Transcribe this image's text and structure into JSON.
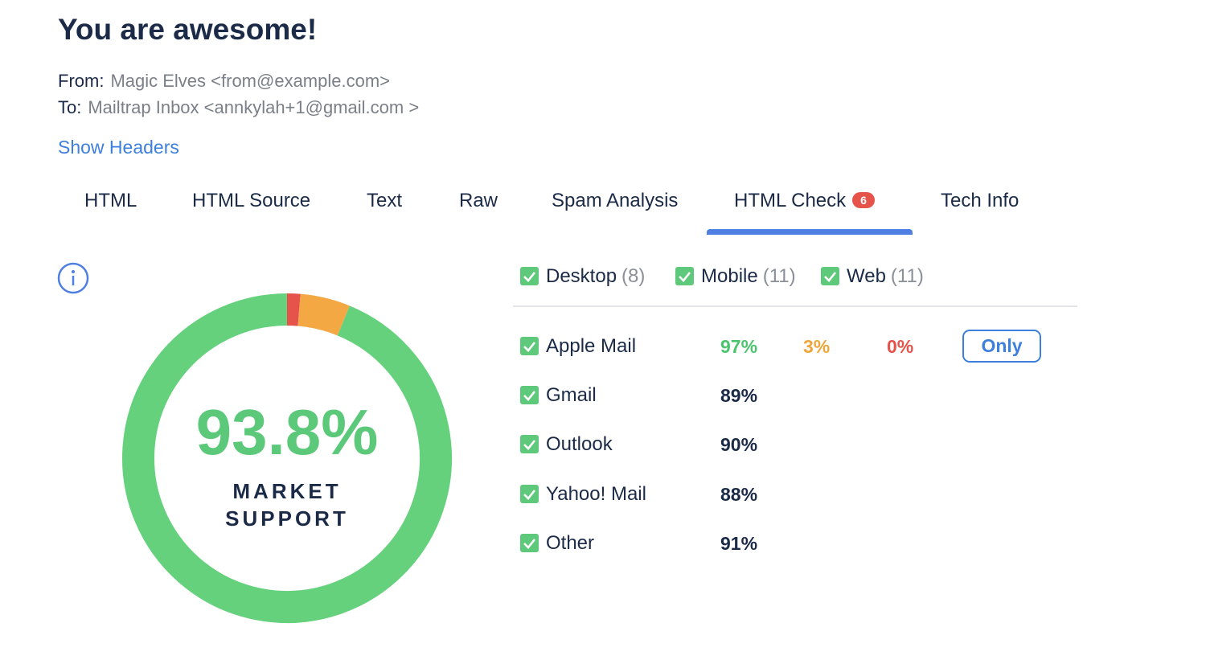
{
  "header": {
    "title": "You are awesome!",
    "from_label": "From:",
    "from": "Magic Elves <from@example.com>",
    "to_label": "To:",
    "to": "Mailtrap Inbox <annkylah+1@gmail.com >",
    "show_headers": "Show Headers"
  },
  "tabs": {
    "active": 5,
    "items": [
      {
        "label": "HTML"
      },
      {
        "label": "HTML Source"
      },
      {
        "label": "Text"
      },
      {
        "label": "Raw"
      },
      {
        "label": "Spam Analysis"
      },
      {
        "label": "HTML Check",
        "badge": "6"
      },
      {
        "label": "Tech Info"
      }
    ]
  },
  "donut": {
    "value_label": "93.8%",
    "caption": [
      "MARKET",
      "SUPPORT"
    ],
    "segments": [
      {
        "value": 1.3,
        "color": "#e5534b"
      },
      {
        "value": 4.9,
        "color": "#f4a843"
      },
      {
        "value": 93.8,
        "color": "#66d17d"
      }
    ]
  },
  "filters": [
    {
      "label": "Desktop",
      "count": "(8)"
    },
    {
      "label": "Mobile",
      "count": "(11)"
    },
    {
      "label": "Web",
      "count": "(11)"
    }
  ],
  "clients": {
    "status_colors": [
      "#4cc46e",
      "#f0a53a",
      "#e5534b"
    ],
    "only_button": "Only",
    "rows": [
      {
        "name": "Apple Mail",
        "values": [
          "97%",
          "3%",
          "0%"
        ],
        "expanded": true
      },
      {
        "name": "Gmail",
        "values": [
          "89%"
        ]
      },
      {
        "name": "Outlook",
        "values": [
          "90%"
        ]
      },
      {
        "name": "Yahoo! Mail",
        "values": [
          "88%"
        ]
      },
      {
        "name": "Other",
        "values": [
          "91%"
        ]
      }
    ]
  }
}
